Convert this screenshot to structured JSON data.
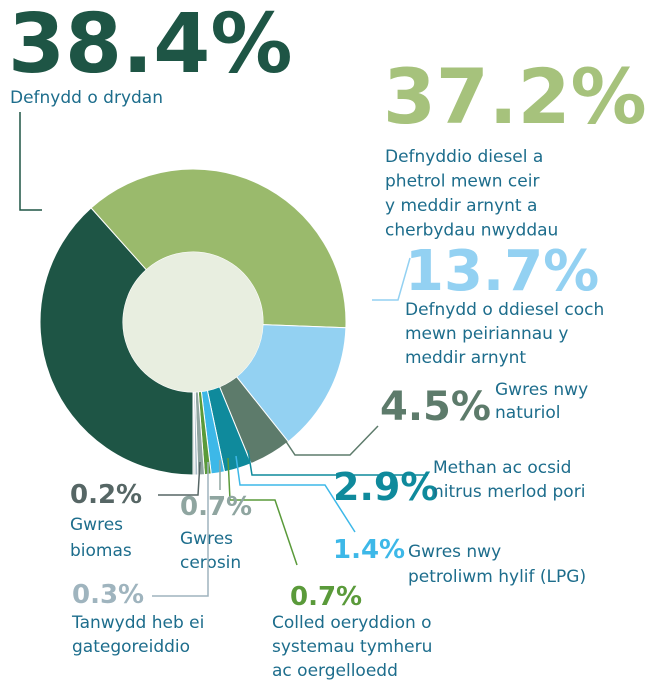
{
  "chart_data": {
    "type": "donut",
    "slices": [
      {
        "value": 38.4,
        "value_label": "38.4%",
        "color": "#1e5545",
        "label_color": "#1e5545",
        "label_lines": [
          "Defnydd o drydan"
        ]
      },
      {
        "value": 37.2,
        "value_label": "37.2%",
        "color": "#9aba6c",
        "label_color": "#a6c27c",
        "label_lines": [
          "Defnyddio diesel a",
          "phetrol mewn ceir",
          "y meddir arnynt a",
          "cherbydau nwyddau"
        ]
      },
      {
        "value": 13.7,
        "value_label": "13.7%",
        "color": "#93d1f2",
        "label_color": "#93d1f2",
        "label_lines": [
          "Defnydd o ddiesel coch",
          "mewn peiriannau y",
          "meddir arnynt"
        ]
      },
      {
        "value": 4.5,
        "value_label": "4.5%",
        "color": "#5d7b6b",
        "label_color": "#5d7b6b",
        "label_lines": [
          "Gwres nwy",
          "naturiol"
        ]
      },
      {
        "value": 2.9,
        "value_label": "2.9%",
        "color": "#0f8a9c",
        "label_color": "#0f8a9c",
        "label_lines": [
          "Methan ac ocsid",
          "nitrus merlod pori"
        ]
      },
      {
        "value": 1.4,
        "value_label": "1.4%",
        "color": "#3db8e8",
        "label_color": "#3db8e8",
        "label_lines": [
          "Gwres nwy",
          "petroliwm hylif (LPG)"
        ]
      },
      {
        "value": 0.7,
        "value_label": "0.7%",
        "color": "#5a9a3a",
        "label_color": "#5a9a3a",
        "label_lines": [
          "Colled oeryddion o",
          "systemau tymheru",
          "ac oergelloedd"
        ]
      },
      {
        "value": 0.7,
        "value_label": "0.7%",
        "color": "#8fa5a0",
        "label_color": "#8fa5a0",
        "label_lines": [
          "Gwres",
          "cerosin"
        ]
      },
      {
        "value": 0.3,
        "value_label": "0.3%",
        "color": "#a9bcc6",
        "label_color": "#9fb4be",
        "label_lines": [
          "Tanwydd heb ei",
          "gategoreiddio"
        ]
      },
      {
        "value": 0.2,
        "value_label": "0.2%",
        "color": "#c3cccc",
        "label_color": "#566665",
        "label_lines": [
          "Gwres",
          "biomas"
        ]
      }
    ]
  }
}
